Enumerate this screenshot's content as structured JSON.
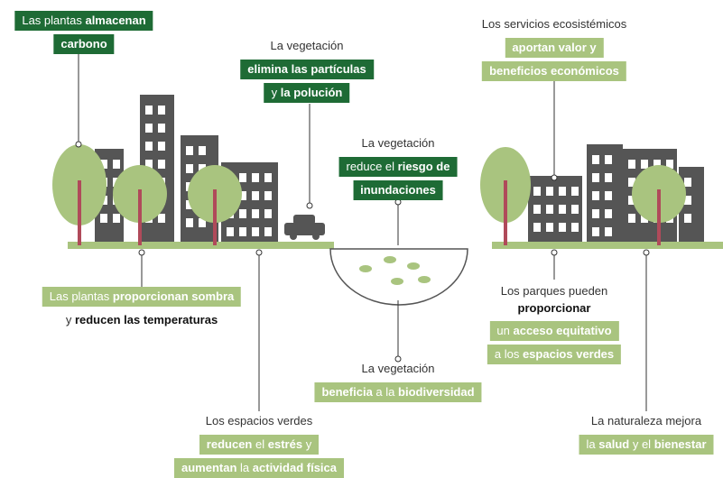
{
  "callouts": [
    {
      "lines": [
        [
          "Las plantas",
          "almacenan"
        ],
        [
          "carbono"
        ]
      ]
    },
    {
      "lines": [
        [
          "La vegetación"
        ],
        [
          "elimina las partículas"
        ],
        [
          "y",
          "la polución"
        ]
      ]
    },
    {
      "lines": [
        [
          "La vegetación"
        ],
        [
          "reduce el",
          "riesgo de"
        ],
        [
          "inundaciones"
        ]
      ]
    },
    {
      "lines": [
        [
          "Los servicios ecosistémicos"
        ],
        [
          "aportan valor y"
        ],
        [
          "beneficios económicos"
        ]
      ]
    },
    {
      "lines": [
        [
          "Las plantas",
          "proporcionan sombra"
        ],
        [
          "y",
          "reducen las temperaturas"
        ]
      ]
    },
    {
      "lines": [
        [
          "Los parques pueden"
        ],
        [
          "proporcionar"
        ],
        [
          "un",
          "acceso equitativo"
        ],
        [
          "a los",
          "espacios verdes"
        ]
      ]
    },
    {
      "lines": [
        [
          "La vegetación"
        ],
        [
          "beneficia",
          "a la",
          "biodiversidad"
        ]
      ]
    },
    {
      "lines": [
        [
          "Los espacios verdes"
        ],
        [
          "reducen",
          "el",
          "estrés",
          "y"
        ],
        [
          "aumentan",
          "la",
          "actividad física"
        ]
      ]
    },
    {
      "lines": [
        [
          "La naturaleza mejora"
        ],
        [
          "la",
          "salud",
          "y el",
          "bienestar"
        ]
      ]
    }
  ]
}
